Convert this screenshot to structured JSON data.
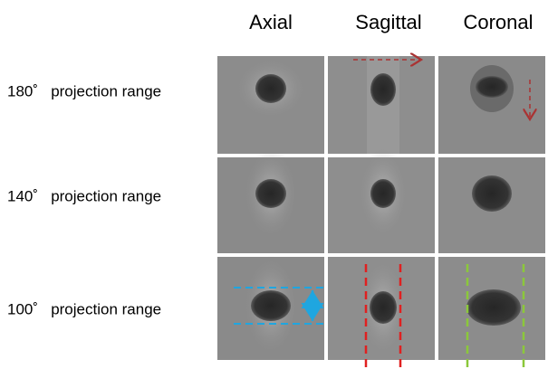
{
  "columns": [
    "Axial",
    "Sagittal",
    "Coronal"
  ],
  "rows": [
    {
      "label": "180˚   projection range"
    },
    {
      "label": "140˚   projection range"
    },
    {
      "label": "100˚   projection range"
    }
  ]
}
